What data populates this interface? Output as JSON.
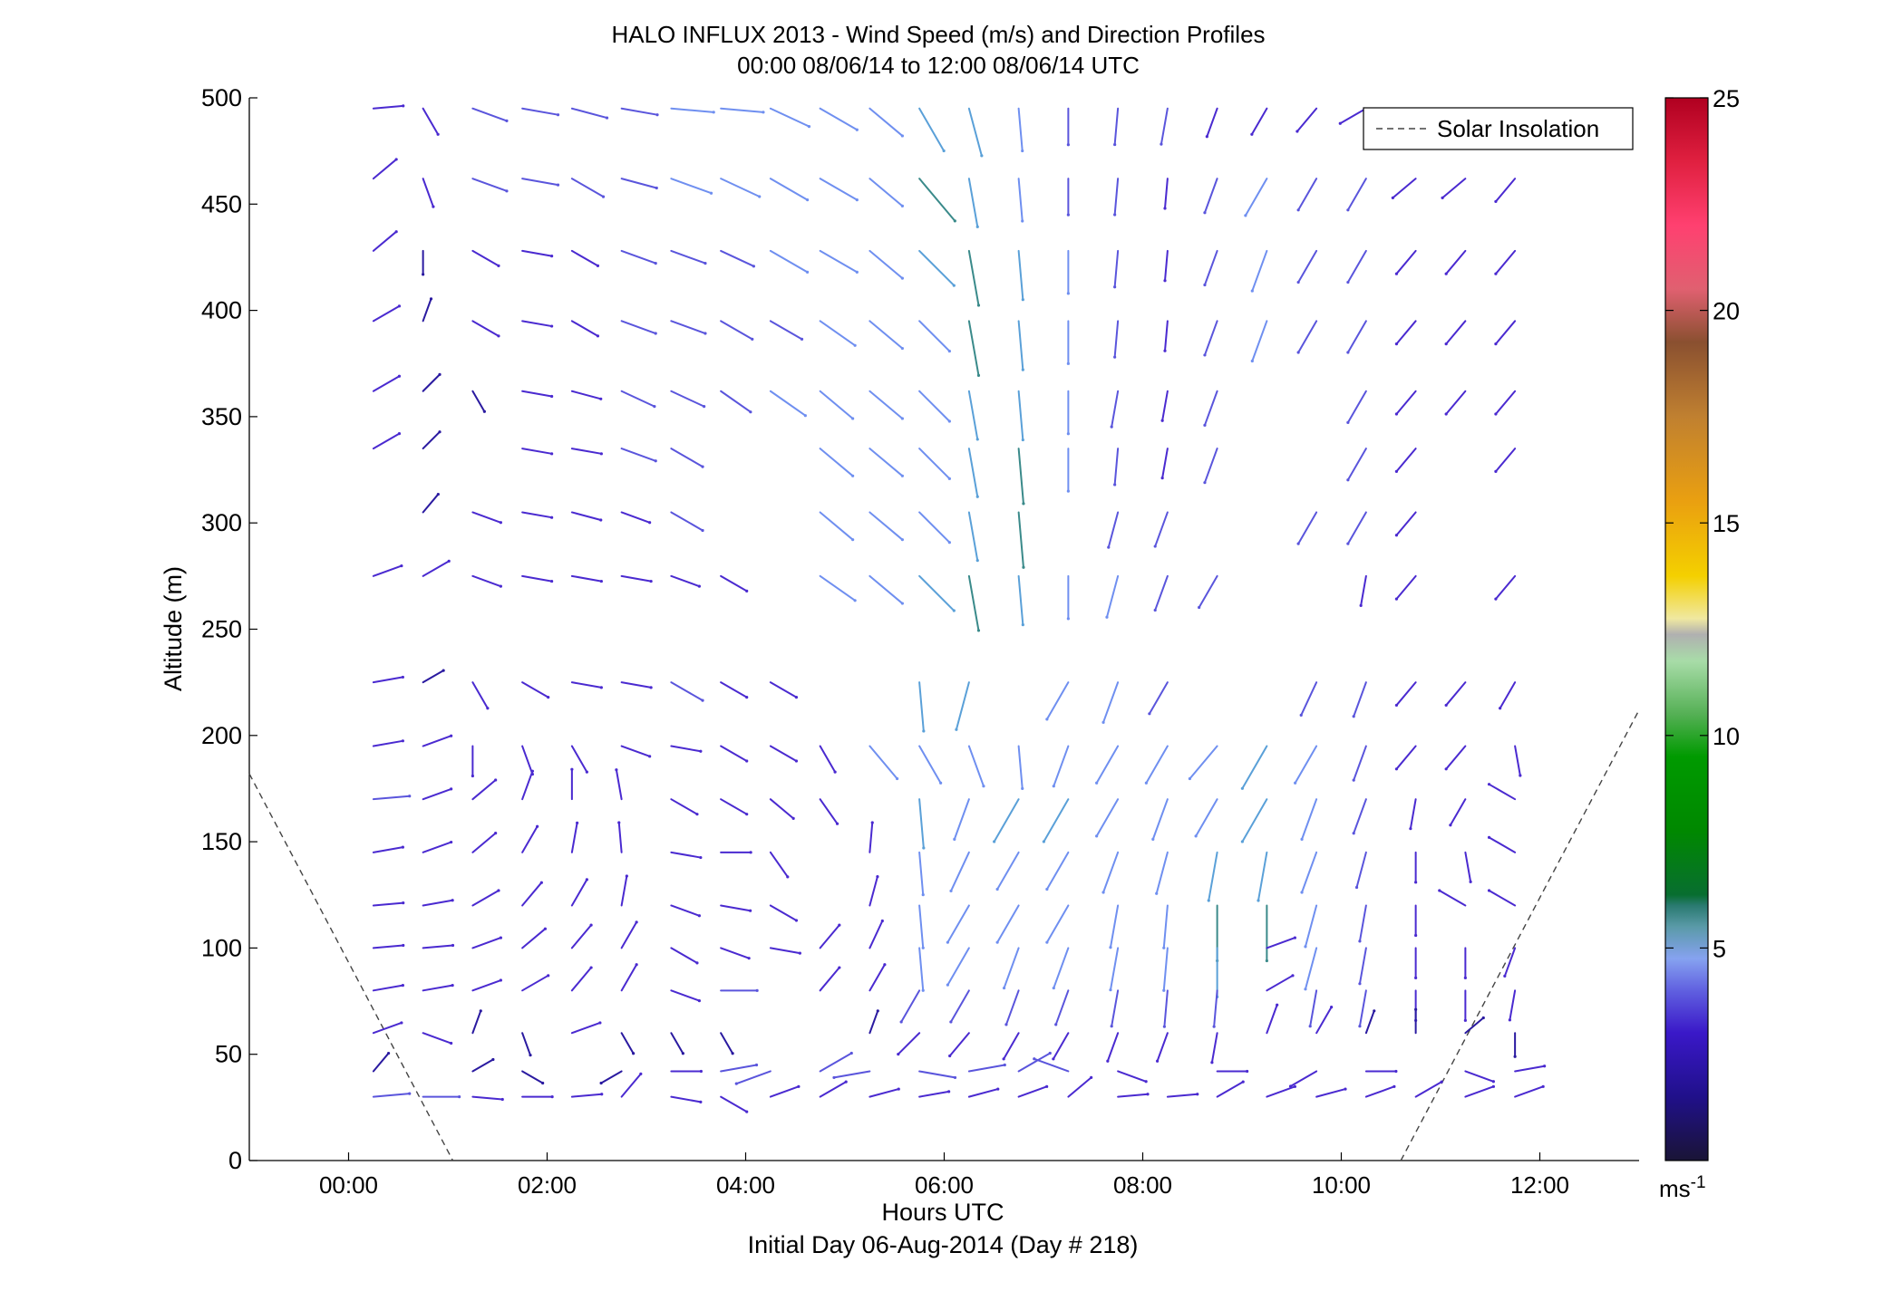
{
  "chart_data": {
    "type": "vector-field",
    "title": "HALO INFLUX 2013 - Wind Speed (m/s) and Direction Profiles",
    "subtitle": "00:00 08/06/14 to 12:00 08/06/14  UTC",
    "xlabel": "Hours UTC",
    "xlabel2": "Initial Day 06-Aug-2014 (Day # 218)",
    "ylabel": "Altitude (m)",
    "xlim": [
      -1,
      13
    ],
    "ylim": [
      0,
      500
    ],
    "xticks": [
      0,
      2,
      4,
      6,
      8,
      10,
      12
    ],
    "xtick_labels": [
      "00:00",
      "02:00",
      "04:00",
      "06:00",
      "08:00",
      "10:00",
      "12:00"
    ],
    "yticks": [
      0,
      50,
      100,
      150,
      200,
      250,
      300,
      350,
      400,
      450,
      500
    ],
    "ytick_labels": [
      "0",
      "50",
      "100",
      "150",
      "200",
      "250",
      "300",
      "350",
      "400",
      "450",
      "500"
    ],
    "legend": {
      "entries": [
        "Solar Insolation"
      ],
      "position": "top-right"
    },
    "colorbar": {
      "min": 0,
      "max": 25,
      "ticks": [
        5,
        10,
        15,
        20,
        25
      ],
      "tick_labels": [
        "5",
        "10",
        "15",
        "20",
        "25"
      ],
      "unit_base": "ms",
      "unit_exp": "-1"
    },
    "insolation_lines": [
      {
        "x": [
          -1,
          1.05
        ],
        "y": [
          182,
          0
        ]
      },
      {
        "x": [
          10.6,
          13
        ],
        "y": [
          0,
          212
        ]
      }
    ],
    "times": [
      0.25,
      0.75,
      1.25,
      1.75,
      2.25,
      2.75,
      3.25,
      3.75,
      4.25,
      4.75,
      5.25,
      5.75,
      6.25,
      6.75,
      7.25,
      7.75,
      8.25,
      8.75,
      9.25,
      9.75,
      10.25,
      10.75,
      11.25,
      11.75
    ],
    "altitudes": [
      495,
      462,
      428,
      395,
      362,
      335,
      305,
      275,
      225,
      195,
      170,
      145,
      120,
      100,
      80,
      60,
      42,
      30
    ],
    "wind": [
      {
        "alt": 495,
        "dir": [
          95,
          30,
          70,
          80,
          75,
          80,
          85,
          85,
          65,
          60,
          50,
          30,
          15,
          5,
          0,
          355,
          350,
          340,
          330,
          320,
          300,
          290,
          300,
          315
        ],
        "speed": [
          3,
          3,
          4,
          4,
          4,
          4,
          5,
          5,
          5,
          5,
          5,
          6,
          6,
          5,
          4,
          4,
          4,
          3,
          3,
          3,
          3,
          3,
          3,
          3
        ]
      },
      {
        "alt": 462,
        "dir": [
          130,
          20,
          70,
          80,
          60,
          75,
          70,
          65,
          60,
          60,
          50,
          40,
          10,
          5,
          0,
          355,
          355,
          340,
          330,
          330,
          330,
          310,
          310,
          320
        ],
        "speed": [
          3,
          3,
          4,
          4,
          4,
          4,
          5,
          5,
          5,
          5,
          5,
          7,
          6,
          5,
          4,
          4,
          3,
          4,
          5,
          4,
          4,
          3,
          3,
          3
        ]
      },
      {
        "alt": 428,
        "dir": [
          130,
          0,
          60,
          80,
          60,
          70,
          70,
          65,
          60,
          60,
          50,
          45,
          10,
          5,
          0,
          355,
          355,
          340,
          340,
          330,
          330,
          320,
          320,
          320
        ],
        "speed": [
          3,
          2,
          3,
          3,
          3,
          4,
          4,
          4,
          5,
          5,
          5,
          6,
          7,
          6,
          5,
          4,
          3,
          4,
          5,
          4,
          4,
          3,
          3,
          3
        ]
      },
      {
        "alt": 395,
        "dir": [
          120,
          160,
          60,
          80,
          60,
          70,
          70,
          60,
          60,
          55,
          50,
          45,
          10,
          5,
          0,
          355,
          355,
          340,
          340,
          330,
          330,
          320,
          320,
          320
        ],
        "speed": [
          3,
          2,
          3,
          3,
          3,
          4,
          4,
          4,
          4,
          5,
          5,
          5,
          7,
          6,
          5,
          4,
          3,
          4,
          5,
          4,
          4,
          3,
          3,
          3
        ]
      },
      {
        "alt": 362,
        "dir": [
          120,
          135,
          30,
          80,
          75,
          65,
          65,
          55,
          55,
          50,
          50,
          45,
          10,
          5,
          0,
          350,
          350,
          340,
          0,
          0,
          330,
          320,
          320,
          320
        ],
        "speed": [
          3,
          2,
          2,
          3,
          3,
          4,
          4,
          4,
          5,
          5,
          5,
          5,
          6,
          6,
          5,
          4,
          3,
          4,
          0,
          0,
          4,
          3,
          3,
          3
        ]
      },
      {
        "alt": 335,
        "dir": [
          120,
          135,
          0,
          80,
          80,
          70,
          60,
          0,
          0,
          50,
          50,
          45,
          10,
          5,
          0,
          355,
          350,
          340,
          0,
          0,
          330,
          320,
          0,
          320
        ],
        "speed": [
          3,
          2,
          0,
          3,
          3,
          4,
          4,
          0,
          0,
          5,
          5,
          5,
          6,
          7,
          5,
          4,
          3,
          4,
          0,
          0,
          4,
          3,
          0,
          3
        ]
      },
      {
        "alt": 305,
        "dir": [
          0,
          140,
          70,
          80,
          75,
          70,
          60,
          0,
          0,
          50,
          50,
          45,
          10,
          5,
          0,
          345,
          340,
          0,
          0,
          330,
          330,
          320,
          0,
          0
        ],
        "speed": [
          0,
          2,
          3,
          3,
          3,
          3,
          4,
          0,
          0,
          5,
          5,
          5,
          6,
          7,
          0,
          4,
          4,
          0,
          0,
          4,
          4,
          3,
          0,
          0
        ]
      },
      {
        "alt": 275,
        "dir": [
          110,
          120,
          70,
          80,
          80,
          80,
          70,
          60,
          0,
          55,
          50,
          45,
          10,
          5,
          0,
          345,
          340,
          330,
          0,
          0,
          350,
          320,
          0,
          320
        ],
        "speed": [
          3,
          3,
          3,
          3,
          3,
          3,
          3,
          3,
          0,
          5,
          5,
          6,
          7,
          6,
          5,
          5,
          4,
          4,
          0,
          0,
          3,
          3,
          0,
          3
        ]
      },
      {
        "alt": 225,
        "dir": [
          100,
          120,
          30,
          60,
          80,
          80,
          60,
          60,
          60,
          0,
          0,
          5,
          345,
          0,
          330,
          340,
          330,
          0,
          0,
          335,
          340,
          320,
          320,
          330
        ],
        "speed": [
          3,
          2,
          3,
          3,
          3,
          3,
          4,
          3,
          3,
          0,
          0,
          6,
          6,
          0,
          5,
          5,
          4,
          0,
          0,
          4,
          4,
          3,
          3,
          3
        ]
      },
      {
        "alt": 195,
        "dir": [
          100,
          110,
          0,
          20,
          30,
          70,
          80,
          60,
          60,
          30,
          40,
          30,
          20,
          5,
          340,
          330,
          330,
          320,
          330,
          330,
          340,
          320,
          320,
          10
        ],
        "speed": [
          3,
          3,
          3,
          3,
          3,
          3,
          3,
          3,
          3,
          3,
          5,
          5,
          5,
          5,
          5,
          5,
          5,
          5,
          6,
          5,
          4,
          3,
          3,
          3
        ]
      },
      {
        "alt": 170,
        "dir": [
          95,
          110,
          130,
          160,
          180,
          190,
          60,
          60,
          50,
          35,
          0,
          5,
          340,
          330,
          330,
          330,
          340,
          330,
          330,
          340,
          340,
          350,
          330,
          240
        ],
        "speed": [
          4,
          3,
          3,
          3,
          3,
          3,
          3,
          3,
          3,
          3,
          0,
          6,
          5,
          6,
          6,
          5,
          5,
          5,
          6,
          5,
          4,
          3,
          3,
          3
        ]
      },
      {
        "alt": 145,
        "dir": [
          100,
          110,
          130,
          150,
          170,
          185,
          80,
          90,
          35,
          0,
          175,
          5,
          335,
          330,
          330,
          340,
          345,
          350,
          350,
          340,
          345,
          360,
          10,
          240
        ],
        "speed": [
          3,
          3,
          3,
          3,
          3,
          3,
          3,
          3,
          3,
          0,
          3,
          5,
          5,
          5,
          5,
          5,
          5,
          6,
          6,
          5,
          4,
          3,
          3,
          3
        ]
      },
      {
        "alt": 120,
        "dir": [
          95,
          100,
          120,
          140,
          150,
          170,
          70,
          80,
          60,
          0,
          165,
          5,
          330,
          330,
          330,
          350,
          355,
          0,
          0,
          345,
          350,
          0,
          240,
          240
        ],
        "speed": [
          3,
          3,
          3,
          3,
          3,
          3,
          3,
          3,
          3,
          0,
          3,
          5,
          5,
          5,
          5,
          5,
          5,
          7,
          7,
          5,
          4,
          3,
          3,
          3
        ]
      },
      {
        "alt": 100,
        "dir": [
          95,
          95,
          110,
          130,
          140,
          150,
          60,
          70,
          80,
          140,
          155,
          5,
          330,
          340,
          340,
          350,
          355,
          0,
          110,
          345,
          350,
          0,
          0,
          340
        ],
        "speed": [
          3,
          3,
          3,
          3,
          3,
          3,
          3,
          3,
          3,
          3,
          3,
          5,
          5,
          5,
          5,
          5,
          5,
          6,
          3,
          5,
          4,
          3,
          3,
          3
        ]
      },
      {
        "alt": 80,
        "dir": [
          100,
          100,
          110,
          120,
          140,
          150,
          70,
          90,
          0,
          140,
          150,
          330,
          330,
          340,
          340,
          350,
          355,
          355,
          120,
          350,
          350,
          0,
          0,
          350
        ],
        "speed": [
          3,
          3,
          3,
          3,
          3,
          3,
          3,
          4,
          0,
          3,
          3,
          4,
          4,
          4,
          4,
          4,
          4,
          4,
          3,
          4,
          4,
          3,
          3,
          3
        ]
      },
      {
        "alt": 60,
        "dir": [
          110,
          70,
          160,
          20,
          110,
          30,
          30,
          30,
          0,
          0,
          160,
          315,
          320,
          330,
          330,
          340,
          340,
          350,
          160,
          150,
          160,
          180,
          130,
          0
        ],
        "speed": [
          3,
          3,
          2,
          2,
          3,
          2,
          2,
          2,
          0,
          0,
          2,
          3,
          3,
          3,
          3,
          3,
          3,
          3,
          3,
          3,
          2,
          2,
          2,
          2
        ]
      },
      {
        "alt": 42,
        "dir": [
          140,
          0,
          120,
          60,
          0,
          300,
          90,
          100,
          290,
          120,
          280,
          80,
          100,
          120,
          250,
          70,
          0,
          90,
          0,
          300,
          90,
          0,
          70,
          100
        ],
        "speed": [
          2,
          0,
          2,
          2,
          0,
          2,
          3,
          4,
          4,
          4,
          4,
          4,
          4,
          4,
          4,
          3,
          0,
          3,
          0,
          3,
          3,
          0,
          3,
          3
        ]
      },
      {
        "alt": 30,
        "dir": [
          95,
          90,
          85,
          90,
          95,
          140,
          80,
          60,
          110,
          120,
          105,
          100,
          105,
          110,
          130,
          95,
          95,
          120,
          110,
          105,
          110,
          120,
          110,
          110
        ],
        "speed": [
          4,
          4,
          3,
          3,
          3,
          3,
          3,
          3,
          3,
          3,
          3,
          3,
          3,
          3,
          3,
          3,
          3,
          3,
          3,
          3,
          3,
          3,
          3,
          3
        ]
      }
    ]
  }
}
